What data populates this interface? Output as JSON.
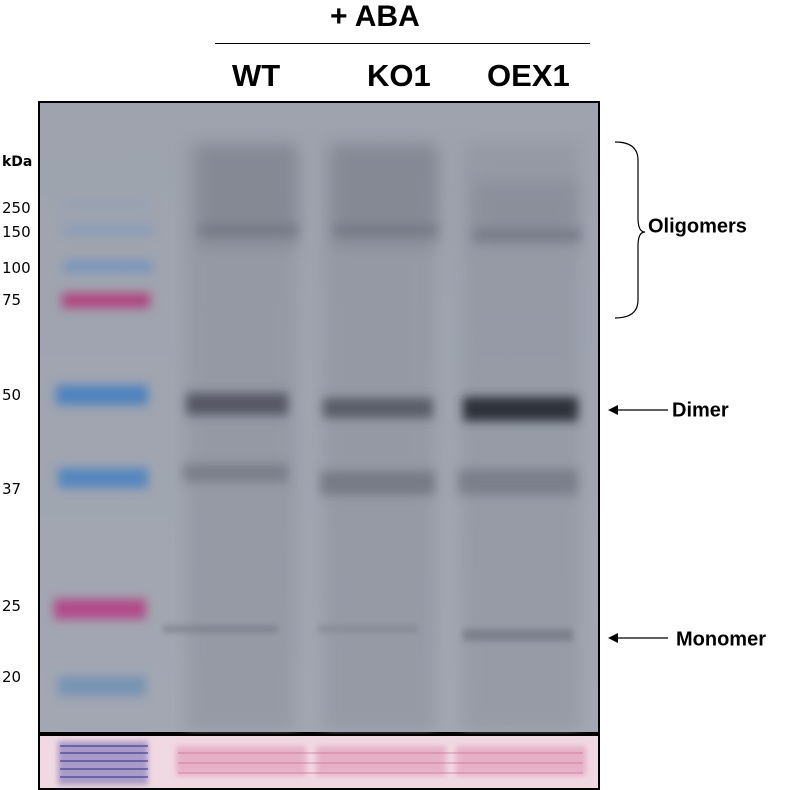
{
  "treatment": "+ ABA",
  "lanes": [
    "WT",
    "KO1",
    "OEX1"
  ],
  "marker_unit": "kDa",
  "markers": [
    "250",
    "150",
    "100",
    "75",
    "50",
    "37",
    "25",
    "20"
  ],
  "annotations": {
    "oligomers": "Oligomers",
    "dimer": "Dimer",
    "monomer": "Monomer"
  },
  "colors": {
    "membrane": "#9aa0ad",
    "ladder_blue": "#4f83bf",
    "ladder_magenta": "#b0447e",
    "band_dark": "#2d313b",
    "stain_pink": "#e9b6cb"
  }
}
